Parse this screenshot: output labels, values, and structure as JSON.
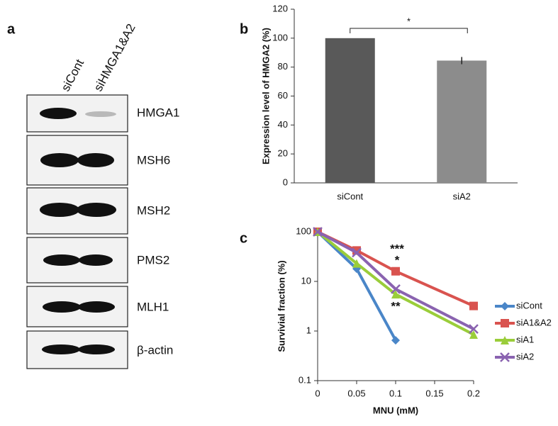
{
  "blot": {
    "panel_label": "a",
    "lanes": [
      "siCont",
      "siHMGA1&A2"
    ],
    "bands": [
      "HMGA1",
      "MSH6",
      "MSH2",
      "PMS2",
      "MLH1",
      "β-actin"
    ]
  },
  "chart_data": [
    {
      "type": "bar",
      "panel_label": "b",
      "ylabel": "Expression level of HMGA2 (%)",
      "categories": [
        "siCont",
        "siA2"
      ],
      "values": [
        100,
        84.5
      ],
      "errors": [
        0,
        2.5
      ],
      "colors": [
        "#595959",
        "#8c8c8c"
      ],
      "ylim": [
        0,
        120
      ],
      "yticks": [
        0,
        20,
        40,
        60,
        80,
        100,
        120
      ],
      "annotations": [
        "*"
      ]
    },
    {
      "type": "line",
      "panel_label": "c",
      "xlabel": "MNU (mM)",
      "ylabel": "Survivial fraction (%)",
      "x": [
        0,
        0.05,
        0.1,
        0.2
      ],
      "xlim": [
        0,
        0.2
      ],
      "xticks": [
        0,
        0.05,
        0.1,
        0.15,
        0.2
      ],
      "log_y": true,
      "ylim": [
        0.1,
        100
      ],
      "yticks": [
        0.1,
        1,
        10,
        100
      ],
      "series": [
        {
          "name": "siCont",
          "color": "#4a86c8",
          "marker": "diamond",
          "values": [
            100,
            18,
            0.65,
            null
          ]
        },
        {
          "name": "siA1&A2",
          "color": "#d9534f",
          "marker": "square",
          "values": [
            100,
            42,
            16,
            3.2
          ]
        },
        {
          "name": "siA1",
          "color": "#9acd3a",
          "marker": "triangle",
          "values": [
            100,
            23,
            5.5,
            0.85
          ]
        },
        {
          "name": "siA2",
          "color": "#8a63b0",
          "marker": "x",
          "values": [
            100,
            38,
            7,
            1.1
          ]
        }
      ],
      "annotations": [
        "***",
        "*",
        "**"
      ]
    }
  ]
}
